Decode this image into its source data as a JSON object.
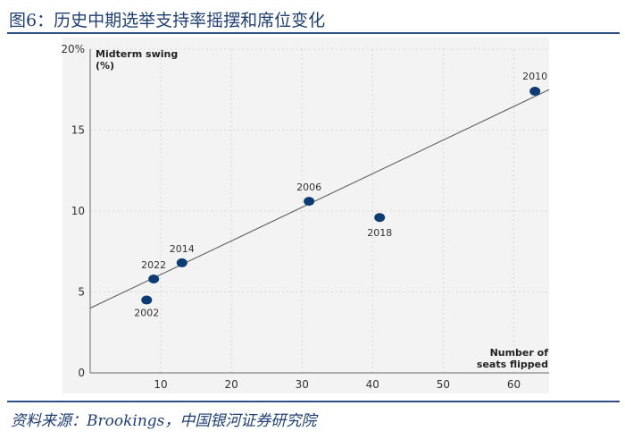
{
  "page": {
    "title": "图6：历史中期选举支持率摇摆和席位变化",
    "source": "资料来源：Brookings，中国银河证券研究院"
  },
  "colors": {
    "title": "#1f3f72",
    "rule": "#2f4f86",
    "points": "#0d3b73",
    "panel_background": "#f3f3f3"
  },
  "chart_data": {
    "type": "scatter",
    "xlabel": "Number of seats flipped",
    "ylabel": "Midterm swing (%)",
    "xlim": [
      0,
      65
    ],
    "ylim": [
      0,
      20
    ],
    "x_ticks": [
      10,
      20,
      30,
      40,
      50,
      60
    ],
    "y_ticks": [
      0,
      5,
      10,
      15,
      20
    ],
    "y_tick_labels": [
      "0",
      "5",
      "10",
      "15",
      "20%"
    ],
    "grid": true,
    "points": [
      {
        "year": "2002",
        "x": 8,
        "y": 4.5
      },
      {
        "year": "2022",
        "x": 9,
        "y": 5.8
      },
      {
        "year": "2014",
        "x": 13,
        "y": 6.8
      },
      {
        "year": "2006",
        "x": 31,
        "y": 10.6
      },
      {
        "year": "2018",
        "x": 41,
        "y": 9.6
      },
      {
        "year": "2010",
        "x": 63,
        "y": 17.4
      }
    ],
    "trend_line": {
      "x": [
        0,
        65
      ],
      "y": [
        4.0,
        17.5
      ]
    }
  }
}
